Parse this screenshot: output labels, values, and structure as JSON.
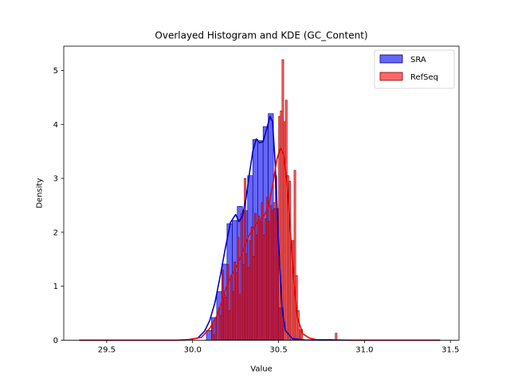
{
  "chart_data": {
    "type": "histogram",
    "title": "Overlayed Histogram and KDE (GC_Content)",
    "xlabel": "Value",
    "ylabel": "Density",
    "xlim": [
      29.25,
      31.55
    ],
    "ylim": [
      0,
      5.45
    ],
    "xticks": [
      29.5,
      30.0,
      30.5,
      31.0,
      31.5
    ],
    "xtick_labels": [
      "29.5",
      "30.0",
      "30.5",
      "31.0",
      "31.5"
    ],
    "yticks": [
      0,
      1,
      2,
      3,
      4,
      5
    ],
    "ytick_labels": [
      "0",
      "1",
      "2",
      "3",
      "4",
      "5"
    ],
    "legend_position": "top-right",
    "grid": false,
    "series": [
      {
        "name": "SRA",
        "fill": "#0000ff",
        "fill_opacity": 0.6,
        "edge": "#000066",
        "line": "#0000cc",
        "bins": [
          [
            30.08,
            30.11,
            0.18
          ],
          [
            30.11,
            30.14,
            0.42
          ],
          [
            30.14,
            30.17,
            0.9
          ],
          [
            30.17,
            30.2,
            1.41
          ],
          [
            30.2,
            30.23,
            2.16
          ],
          [
            30.23,
            30.26,
            2.22
          ],
          [
            30.26,
            30.29,
            2.48
          ],
          [
            30.29,
            30.32,
            2.4
          ],
          [
            30.32,
            30.35,
            3.05
          ],
          [
            30.35,
            30.38,
            3.72
          ],
          [
            30.38,
            30.41,
            3.7
          ],
          [
            30.41,
            30.44,
            3.96
          ],
          [
            30.44,
            30.47,
            4.2
          ],
          [
            30.47,
            30.5,
            2.44
          ],
          [
            30.5,
            30.53,
            0.6
          ]
        ],
        "kde": [
          [
            29.34,
            0
          ],
          [
            29.9,
            0
          ],
          [
            29.98,
            0.01
          ],
          [
            30.03,
            0.04
          ],
          [
            30.07,
            0.17
          ],
          [
            30.1,
            0.37
          ],
          [
            30.13,
            0.7
          ],
          [
            30.16,
            1.18
          ],
          [
            30.19,
            1.7
          ],
          [
            30.22,
            2.18
          ],
          [
            30.25,
            2.33
          ],
          [
            30.27,
            2.2
          ],
          [
            30.29,
            2.3
          ],
          [
            30.31,
            2.62
          ],
          [
            30.33,
            3.08
          ],
          [
            30.35,
            3.5
          ],
          [
            30.37,
            3.73
          ],
          [
            30.39,
            3.66
          ],
          [
            30.41,
            3.68
          ],
          [
            30.43,
            3.9
          ],
          [
            30.45,
            4.15
          ],
          [
            30.465,
            4.05
          ],
          [
            30.48,
            3.3
          ],
          [
            30.5,
            1.8
          ],
          [
            30.52,
            0.6
          ],
          [
            30.54,
            0.18
          ],
          [
            30.58,
            0.03
          ],
          [
            30.65,
            0.005
          ],
          [
            30.75,
            0
          ],
          [
            31.44,
            0
          ]
        ]
      },
      {
        "name": "RefSeq",
        "fill": "#ff0000",
        "fill_opacity": 0.6,
        "edge": "#880000",
        "line": "#ee0000",
        "bins": [
          [
            30.11,
            30.12,
            0.3
          ],
          [
            30.12,
            30.13,
            0.1
          ],
          [
            30.13,
            30.14,
            0.4
          ],
          [
            30.15,
            30.16,
            0.6
          ],
          [
            30.16,
            30.17,
            0.45
          ],
          [
            30.17,
            30.18,
            1.3
          ],
          [
            30.18,
            30.19,
            0.85
          ],
          [
            30.19,
            30.2,
            0.8
          ],
          [
            30.2,
            30.21,
            1.4
          ],
          [
            30.21,
            30.22,
            0.55
          ],
          [
            30.22,
            30.23,
            1.2
          ],
          [
            30.23,
            30.24,
            0.9
          ],
          [
            30.24,
            30.25,
            1.45
          ],
          [
            30.25,
            30.26,
            1.25
          ],
          [
            30.26,
            30.27,
            1.9
          ],
          [
            30.27,
            30.28,
            0.85
          ],
          [
            30.28,
            30.29,
            2.35
          ],
          [
            30.29,
            30.3,
            1.4
          ],
          [
            30.3,
            30.31,
            3.0
          ],
          [
            30.31,
            30.32,
            1.6
          ],
          [
            30.32,
            30.33,
            1.35
          ],
          [
            30.33,
            30.34,
            1.85
          ],
          [
            30.34,
            30.35,
            2.1
          ],
          [
            30.35,
            30.36,
            1.55
          ],
          [
            30.36,
            30.37,
            2.35
          ],
          [
            30.37,
            30.38,
            1.95
          ],
          [
            30.38,
            30.39,
            2.3
          ],
          [
            30.39,
            30.4,
            2.2
          ],
          [
            30.4,
            30.41,
            2.55
          ],
          [
            30.41,
            30.42,
            1.95
          ],
          [
            30.42,
            30.43,
            2.25
          ],
          [
            30.43,
            30.44,
            2.65
          ],
          [
            30.44,
            30.45,
            2.2
          ],
          [
            30.45,
            30.46,
            2.5
          ],
          [
            30.46,
            30.47,
            2.4
          ],
          [
            30.47,
            30.48,
            2.55
          ],
          [
            30.48,
            30.49,
            3.05
          ],
          [
            30.49,
            30.5,
            2.25
          ],
          [
            30.5,
            30.51,
            4.15
          ],
          [
            30.51,
            30.52,
            4.25
          ],
          [
            30.52,
            30.53,
            5.2
          ],
          [
            30.53,
            30.54,
            4.05
          ],
          [
            30.54,
            30.55,
            4.45
          ],
          [
            30.55,
            30.56,
            3.05
          ],
          [
            30.56,
            30.57,
            2.95
          ],
          [
            30.57,
            30.58,
            1.85
          ],
          [
            30.58,
            30.59,
            1.85
          ],
          [
            30.59,
            30.6,
            3.15
          ],
          [
            30.6,
            30.61,
            1.2
          ],
          [
            30.61,
            30.62,
            0.55
          ],
          [
            30.62,
            30.63,
            0.2
          ],
          [
            30.63,
            30.64,
            0.2
          ],
          [
            30.83,
            30.84,
            0.13
          ]
        ],
        "kde": [
          [
            29.34,
            0
          ],
          [
            29.95,
            0
          ],
          [
            30.05,
            0.05
          ],
          [
            30.1,
            0.22
          ],
          [
            30.14,
            0.45
          ],
          [
            30.17,
            0.72
          ],
          [
            30.2,
            1.02
          ],
          [
            30.23,
            1.22
          ],
          [
            30.26,
            1.4
          ],
          [
            30.29,
            1.62
          ],
          [
            30.32,
            1.9
          ],
          [
            30.35,
            2.05
          ],
          [
            30.38,
            2.2
          ],
          [
            30.41,
            2.28
          ],
          [
            30.44,
            2.45
          ],
          [
            30.47,
            2.95
          ],
          [
            30.49,
            3.35
          ],
          [
            30.51,
            3.56
          ],
          [
            30.53,
            3.45
          ],
          [
            30.55,
            2.9
          ],
          [
            30.57,
            1.95
          ],
          [
            30.59,
            1.05
          ],
          [
            30.61,
            0.42
          ],
          [
            30.64,
            0.12
          ],
          [
            30.68,
            0.04
          ],
          [
            30.72,
            0.01
          ],
          [
            30.8,
            0.01
          ],
          [
            30.86,
            0.005
          ],
          [
            30.95,
            0
          ],
          [
            31.44,
            0
          ]
        ]
      }
    ]
  }
}
